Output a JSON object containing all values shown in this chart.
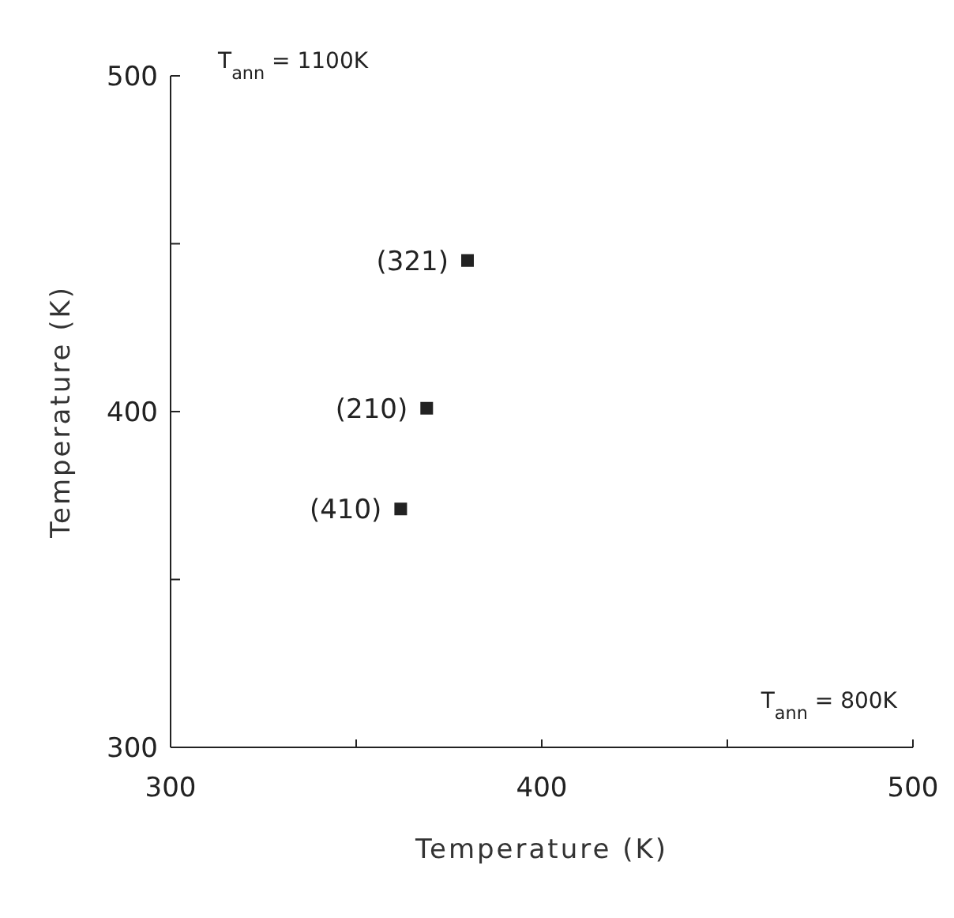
{
  "chart_data": {
    "type": "scatter",
    "xlabel": "Temperature (K)",
    "ylabel": "Temperature (K)",
    "x": [
      362,
      369,
      380
    ],
    "values": [
      371,
      401,
      445
    ],
    "color": "#222222",
    "marker": "square",
    "xlim": [
      300,
      500
    ],
    "ylim": [
      300,
      500
    ],
    "xticks": [
      300,
      {
        "value": 350,
        "label": null
      },
      400,
      {
        "value": 450,
        "label": null
      },
      500
    ],
    "yticks": [
      300,
      {
        "value": 350,
        "label": null
      },
      400,
      {
        "value": 450,
        "label": null
      },
      500
    ],
    "grid": false,
    "legend": false,
    "annotations": [
      {
        "text": "(410)",
        "x": 362,
        "y": 371
      },
      {
        "text": "(210)",
        "x": 369,
        "y": 401
      },
      {
        "text": "(321)",
        "x": 380,
        "y": 445
      },
      "T$_{ann}$ = 1100K",
      "T$_{ann}$ = 800K"
    ]
  }
}
